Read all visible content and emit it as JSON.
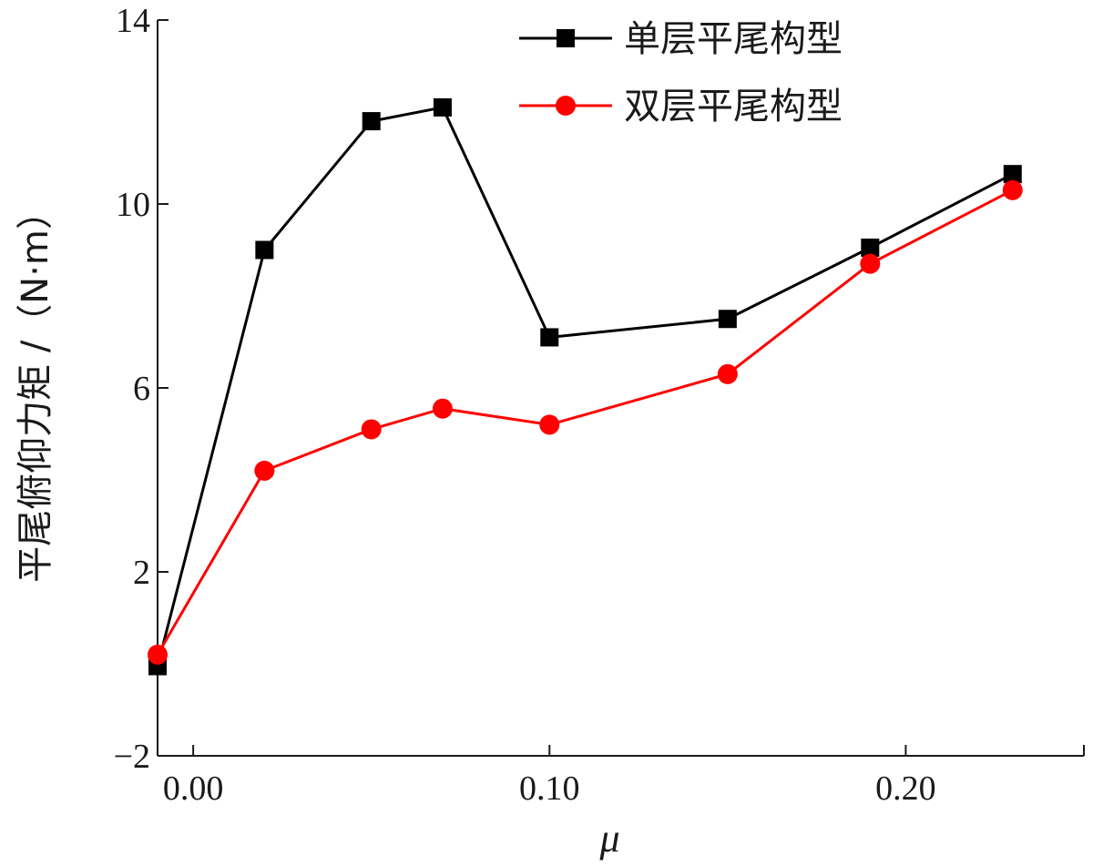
{
  "chart_data": {
    "type": "line",
    "xlabel": "μ",
    "ylabel": "平尾俯仰力矩 /（N·m）",
    "xlim": [
      -0.01,
      0.25
    ],
    "ylim": [
      -2,
      14
    ],
    "xticks": [
      0.0,
      0.1,
      0.2
    ],
    "xtick_labels": [
      "0.00",
      "0.10",
      "0.20"
    ],
    "yticks": [
      -2,
      2,
      6,
      10,
      14
    ],
    "ytick_labels": [
      "−2",
      "2",
      "6",
      "10",
      "14"
    ],
    "grid": false,
    "legend_position": "top-right",
    "series": [
      {
        "name": "单层平尾构型",
        "color": "#000000",
        "marker": "square",
        "x": [
          -0.01,
          0.02,
          0.05,
          0.07,
          0.1,
          0.15,
          0.19,
          0.23
        ],
        "y": [
          -0.05,
          9.0,
          11.8,
          12.1,
          7.1,
          7.5,
          9.05,
          10.65
        ]
      },
      {
        "name": "双层平尾构型",
        "color": "#ff0000",
        "marker": "circle",
        "x": [
          -0.01,
          0.02,
          0.05,
          0.07,
          0.1,
          0.15,
          0.19,
          0.23
        ],
        "y": [
          0.2,
          4.2,
          5.1,
          5.55,
          5.2,
          6.3,
          8.7,
          10.3
        ]
      }
    ]
  }
}
